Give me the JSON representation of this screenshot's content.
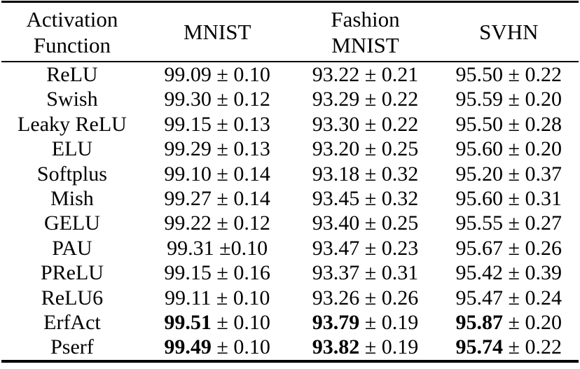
{
  "colors": {
    "text": "#000000",
    "rule": "#000000",
    "background": "#ffffff"
  },
  "table": {
    "header": {
      "col0": "Activation\nFunction",
      "col1": "MNIST",
      "col2": "Fashion\nMNIST",
      "col3": "SVHN"
    },
    "rows": [
      {
        "name": "ReLU",
        "bold": false,
        "mnist_mean": "99.09",
        "mnist_err": "± 0.10",
        "fashion_mean": "93.22",
        "fashion_err": "± 0.21",
        "svhn_mean": "95.50",
        "svhn_err": "± 0.22"
      },
      {
        "name": "Swish",
        "bold": false,
        "mnist_mean": "99.30",
        "mnist_err": "± 0.12",
        "fashion_mean": "93.29",
        "fashion_err": "± 0.22",
        "svhn_mean": "95.59",
        "svhn_err": "± 0.20"
      },
      {
        "name": "Leaky ReLU",
        "bold": false,
        "mnist_mean": "99.15",
        "mnist_err": "± 0.13",
        "fashion_mean": "93.30",
        "fashion_err": "± 0.22",
        "svhn_mean": "95.50",
        "svhn_err": "± 0.28"
      },
      {
        "name": "ELU",
        "bold": false,
        "mnist_mean": "99.29",
        "mnist_err": "± 0.13",
        "fashion_mean": "93.20",
        "fashion_err": "± 0.25",
        "svhn_mean": "95.60",
        "svhn_err": "± 0.20"
      },
      {
        "name": "Softplus",
        "bold": false,
        "mnist_mean": "99.10",
        "mnist_err": "± 0.14",
        "fashion_mean": "93.18",
        "fashion_err": "± 0.32",
        "svhn_mean": "95.20",
        "svhn_err": "± 0.37"
      },
      {
        "name": "Mish",
        "bold": false,
        "mnist_mean": "99.27",
        "mnist_err": "± 0.14",
        "fashion_mean": "93.45",
        "fashion_err": "± 0.32",
        "svhn_mean": "95.60",
        "svhn_err": "± 0.31"
      },
      {
        "name": "GELU",
        "bold": false,
        "mnist_mean": "99.22",
        "mnist_err": "± 0.12",
        "fashion_mean": "93.40",
        "fashion_err": "± 0.25",
        "svhn_mean": "95.55",
        "svhn_err": "± 0.27"
      },
      {
        "name": "PAU",
        "bold": false,
        "mnist_mean": "99.31",
        "mnist_err": "±0.10",
        "fashion_mean": "93.47",
        "fashion_err": "± 0.23",
        "svhn_mean": "95.67",
        "svhn_err": "± 0.26"
      },
      {
        "name": "PReLU",
        "bold": false,
        "mnist_mean": "99.15",
        "mnist_err": "± 0.16",
        "fashion_mean": "93.37",
        "fashion_err": "± 0.31",
        "svhn_mean": "95.42",
        "svhn_err": "± 0.39"
      },
      {
        "name": "ReLU6",
        "bold": false,
        "mnist_mean": "99.11",
        "mnist_err": "± 0.10",
        "fashion_mean": "93.26",
        "fashion_err": "± 0.26",
        "svhn_mean": "95.47",
        "svhn_err": "± 0.24"
      },
      {
        "name": "ErfAct",
        "bold": true,
        "mnist_mean": "99.51",
        "mnist_err": "± 0.10",
        "fashion_mean": "93.79",
        "fashion_err": "± 0.19",
        "svhn_mean": "95.87",
        "svhn_err": "± 0.20"
      },
      {
        "name": "Pserf",
        "bold": true,
        "mnist_mean": "99.49",
        "mnist_err": "± 0.10",
        "fashion_mean": "93.82",
        "fashion_err": "± 0.19",
        "svhn_mean": "95.74",
        "svhn_err": "± 0.22"
      }
    ]
  }
}
